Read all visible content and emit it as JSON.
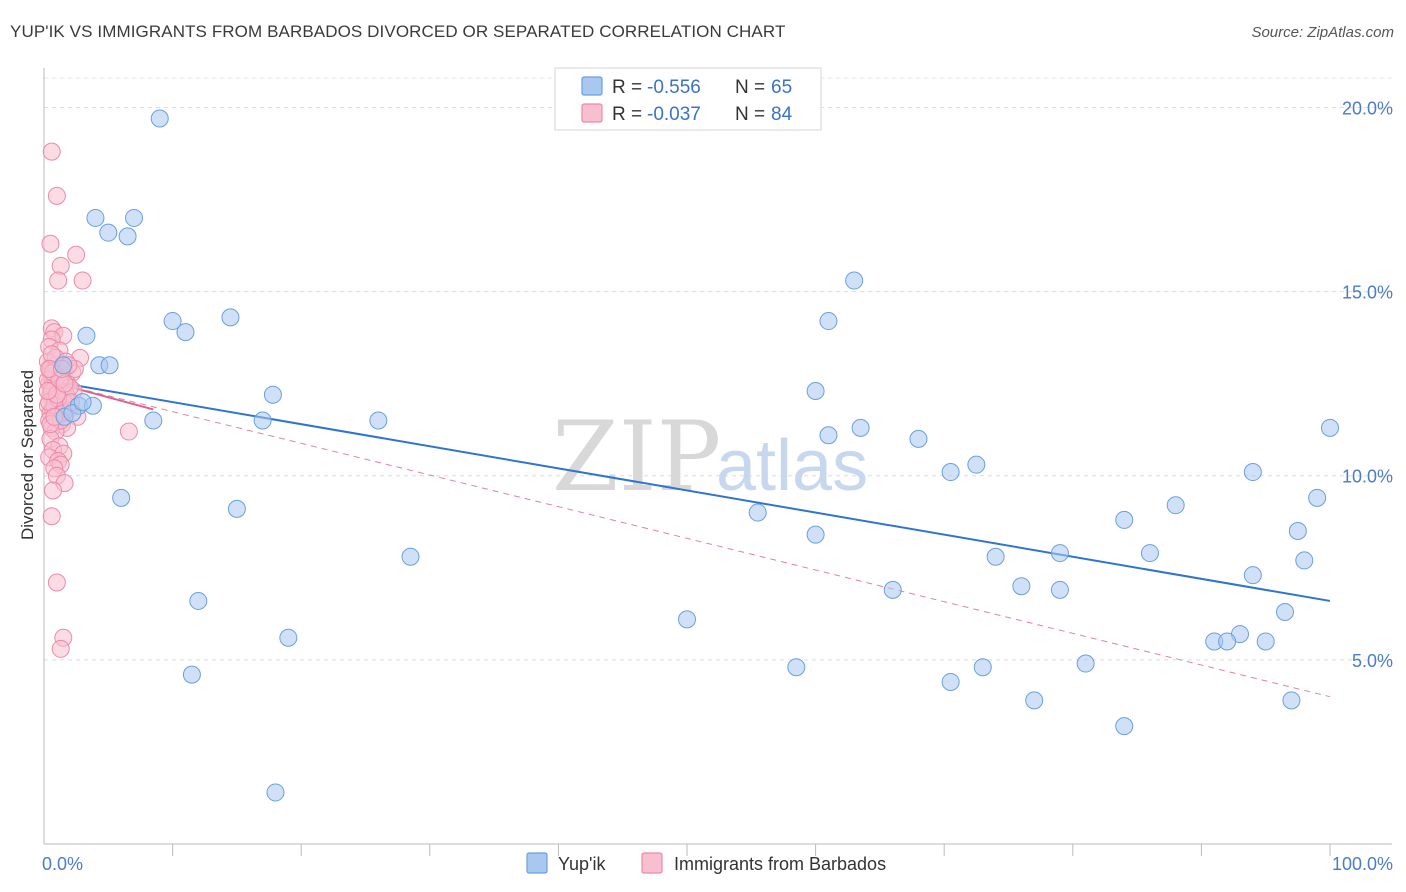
{
  "title": "YUP'IK VS IMMIGRANTS FROM BARBADOS DIVORCED OR SEPARATED CORRELATION CHART",
  "source": "Source: ZipAtlas.com",
  "watermark": {
    "zip": "ZIP",
    "atlas": "atlas"
  },
  "legend": {
    "r_label": "R = ",
    "n_label": "N = ",
    "rows": [
      {
        "r": "-0.556",
        "n": "65",
        "color": "#a9c8f0",
        "stroke": "#6a9fe0"
      },
      {
        "r": "-0.037",
        "n": "84",
        "color": "#f7bfd0",
        "stroke": "#ec8aa9"
      }
    ]
  },
  "chart_data": {
    "type": "scatter",
    "title": "YUP'IK VS IMMIGRANTS FROM BARBADOS DIVORCED OR SEPARATED CORRELATION CHART",
    "xlabel": "",
    "ylabel": "Divorced or Separated",
    "xlim": [
      0,
      100
    ],
    "ylim": [
      0,
      20.8
    ],
    "x_tick_labels": [
      "0.0%",
      "100.0%"
    ],
    "y_ticks": [
      5,
      10,
      15,
      20
    ],
    "y_tick_labels": [
      "5.0%",
      "10.0%",
      "15.0%",
      "20.0%"
    ],
    "grid": "horizontal dashed",
    "legend_position": "top-center",
    "series": [
      {
        "name": "Yup'ik",
        "color": "#a9c8f0",
        "stroke": "#6a9fe0",
        "trend": {
          "x": [
            0,
            100
          ],
          "y": [
            12.6,
            6.6
          ],
          "style": "solid",
          "color": "#2f74d0"
        },
        "points": [
          [
            9,
            19.7
          ],
          [
            4,
            17
          ],
          [
            7,
            17
          ],
          [
            5,
            16.6
          ],
          [
            6.5,
            16.5
          ],
          [
            10,
            14.2
          ],
          [
            3.3,
            13.8
          ],
          [
            11,
            13.9
          ],
          [
            14.5,
            14.3
          ],
          [
            4.3,
            13
          ],
          [
            5.1,
            13
          ],
          [
            17.8,
            12.2
          ],
          [
            2.7,
            11.9
          ],
          [
            1.6,
            11.6
          ],
          [
            8.5,
            11.5
          ],
          [
            17,
            11.5
          ],
          [
            26,
            11.5
          ],
          [
            6,
            9.4
          ],
          [
            15,
            9.1
          ],
          [
            28.5,
            7.8
          ],
          [
            12,
            6.6
          ],
          [
            19,
            5.6
          ],
          [
            11.5,
            4.6
          ],
          [
            18,
            1.4
          ],
          [
            63,
            15.3
          ],
          [
            61,
            14.2
          ],
          [
            60,
            12.3
          ],
          [
            61,
            11.1
          ],
          [
            63.5,
            11.3
          ],
          [
            68,
            11
          ],
          [
            70.5,
            10.1
          ],
          [
            72.5,
            10.3
          ],
          [
            55.5,
            9
          ],
          [
            60,
            8.4
          ],
          [
            74,
            7.8
          ],
          [
            79,
            7.9
          ],
          [
            66,
            6.9
          ],
          [
            76,
            7
          ],
          [
            79,
            6.9
          ],
          [
            84,
            8.8
          ],
          [
            86,
            7.9
          ],
          [
            88,
            9.2
          ],
          [
            94,
            10.1
          ],
          [
            97.5,
            8.5
          ],
          [
            99,
            9.4
          ],
          [
            100,
            11.3
          ],
          [
            98,
            7.7
          ],
          [
            94,
            7.3
          ],
          [
            96.5,
            6.3
          ],
          [
            93,
            5.7
          ],
          [
            91,
            5.5
          ],
          [
            92,
            5.5
          ],
          [
            95,
            5.5
          ],
          [
            50,
            6.1
          ],
          [
            58.5,
            4.8
          ],
          [
            70.5,
            4.4
          ],
          [
            73,
            4.8
          ],
          [
            81,
            4.9
          ],
          [
            77,
            3.9
          ],
          [
            84,
            3.2
          ],
          [
            97,
            3.9
          ],
          [
            3.8,
            11.9
          ],
          [
            2.2,
            11.7
          ],
          [
            1.5,
            13
          ],
          [
            3,
            12
          ]
        ]
      },
      {
        "name": "Immigrants from Barbados",
        "color": "#f7bfd0",
        "stroke": "#ec8aa9",
        "trend": {
          "x": [
            0,
            8.5
          ],
          "y": [
            12.6,
            11.8
          ],
          "style": "solid",
          "color": "#e0608a",
          "extended": {
            "x": [
              0,
              100
            ],
            "y": [
              12.6,
              4
            ]
          }
        },
        "points": [
          [
            0.6,
            18.8
          ],
          [
            1,
            17.6
          ],
          [
            0.5,
            16.3
          ],
          [
            2.5,
            16
          ],
          [
            1.3,
            15.7
          ],
          [
            1.1,
            15.3
          ],
          [
            3,
            15.3
          ],
          [
            0.6,
            14
          ],
          [
            0.8,
            13.9
          ],
          [
            1.5,
            13.8
          ],
          [
            0.6,
            13.7
          ],
          [
            0.4,
            13.5
          ],
          [
            1.2,
            13.4
          ],
          [
            2.8,
            13.2
          ],
          [
            0.3,
            13.1
          ],
          [
            0.9,
            13
          ],
          [
            1.6,
            12.9
          ],
          [
            0.5,
            12.8
          ],
          [
            2.2,
            12.8
          ],
          [
            0.7,
            12.7
          ],
          [
            1.3,
            12.6
          ],
          [
            0.4,
            12.5
          ],
          [
            1.8,
            12.5
          ],
          [
            0.6,
            12.4
          ],
          [
            1.1,
            12.3
          ],
          [
            2.3,
            12.3
          ],
          [
            0.5,
            12.2
          ],
          [
            0.8,
            12.1
          ],
          [
            1.5,
            12
          ],
          [
            0.3,
            11.9
          ],
          [
            1.2,
            11.9
          ],
          [
            0.7,
            11.8
          ],
          [
            1.9,
            11.8
          ],
          [
            0.5,
            11.7
          ],
          [
            1,
            11.6
          ],
          [
            2.6,
            11.6
          ],
          [
            0.4,
            11.5
          ],
          [
            1.4,
            11.4
          ],
          [
            0.6,
            11.3
          ],
          [
            1.8,
            11.3
          ],
          [
            6.6,
            11.2
          ],
          [
            0.9,
            11.2
          ],
          [
            0.5,
            11
          ],
          [
            1.2,
            10.8
          ],
          [
            0.7,
            10.7
          ],
          [
            1.5,
            10.6
          ],
          [
            0.4,
            10.5
          ],
          [
            1.1,
            10.4
          ],
          [
            1.3,
            10.3
          ],
          [
            0.8,
            10.2
          ],
          [
            1,
            10
          ],
          [
            1.6,
            9.8
          ],
          [
            0.7,
            9.6
          ],
          [
            0.6,
            8.9
          ],
          [
            1,
            7.1
          ],
          [
            1.5,
            5.6
          ],
          [
            1.3,
            5.3
          ],
          [
            0.5,
            12.9
          ],
          [
            0.9,
            12.5
          ],
          [
            1.7,
            12.2
          ],
          [
            0.3,
            12.6
          ],
          [
            1.4,
            12.7
          ],
          [
            0.6,
            12.3
          ],
          [
            2,
            12.4
          ],
          [
            0.8,
            11.9
          ],
          [
            1.1,
            12.1
          ],
          [
            1.5,
            11.7
          ],
          [
            0.4,
            12
          ],
          [
            2.1,
            12
          ],
          [
            0.9,
            13.2
          ],
          [
            1.7,
            13.1
          ],
          [
            0.6,
            13.3
          ],
          [
            1.3,
            11.5
          ],
          [
            0.5,
            11.4
          ],
          [
            2.4,
            12.9
          ],
          [
            1.9,
            13
          ],
          [
            0.7,
            12.8
          ],
          [
            1.2,
            12.6
          ],
          [
            0.4,
            12.9
          ],
          [
            1,
            12.2
          ],
          [
            1.6,
            12.5
          ],
          [
            0.8,
            11.6
          ],
          [
            0.3,
            12.3
          ],
          [
            1.4,
            12.9
          ]
        ]
      }
    ]
  }
}
